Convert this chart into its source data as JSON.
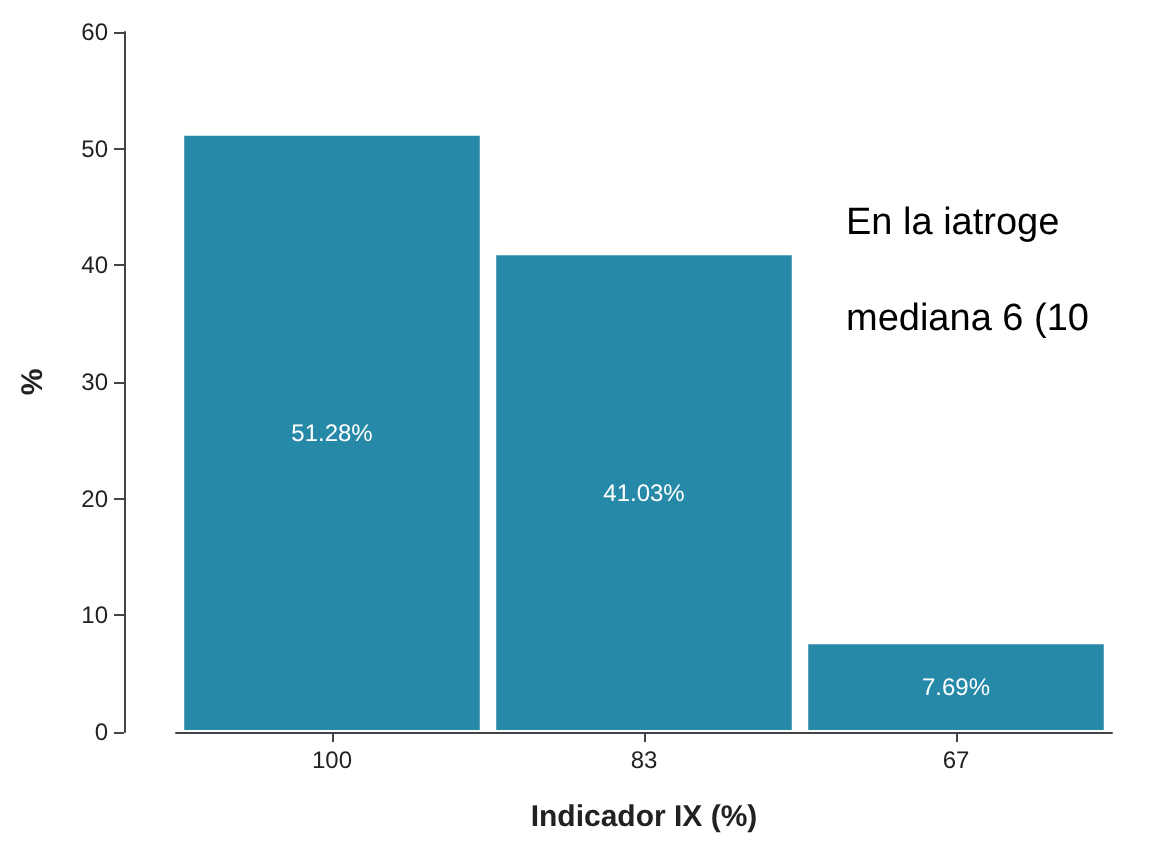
{
  "chart_data": {
    "type": "bar",
    "xlabel": "Indicador IX (%)",
    "ylabel": "%",
    "categories": [
      "100",
      "83",
      "67"
    ],
    "values": [
      51.28,
      41.03,
      7.69
    ],
    "value_labels": [
      "51.28%",
      "41.03%",
      "7.69%"
    ],
    "color": "#2789a8",
    "ylim": [
      0,
      60
    ],
    "yticks": [
      0,
      10,
      20,
      30,
      40,
      50,
      60
    ],
    "grid": false,
    "annotations": [
      "En la iatroge",
      "mediana 6 (10"
    ]
  }
}
